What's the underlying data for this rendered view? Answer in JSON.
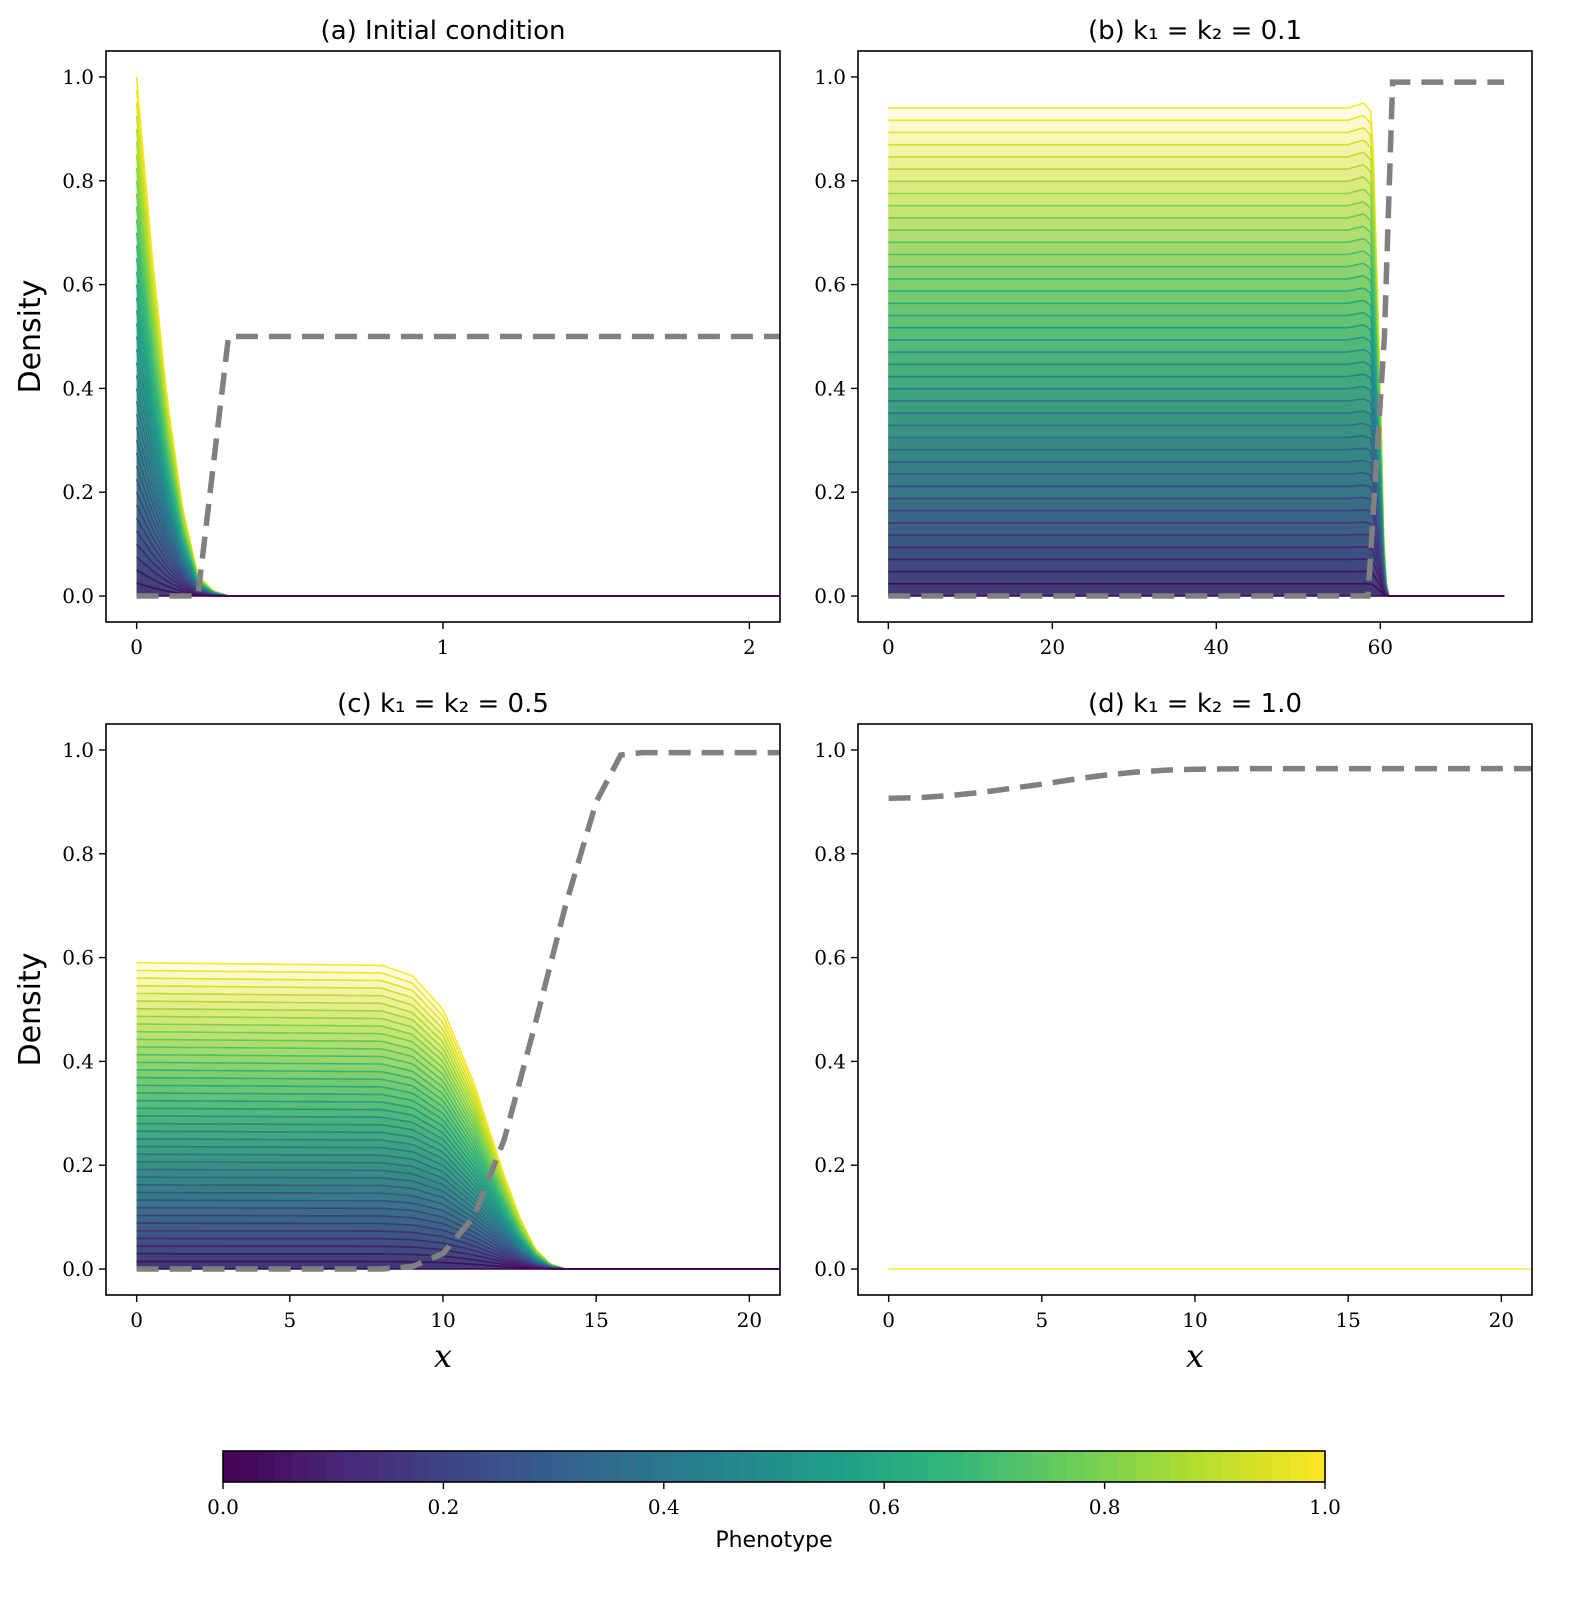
{
  "colormap_stops": [
    "#440154",
    "#482878",
    "#3e4989",
    "#31688e",
    "#26828e",
    "#1f9e89",
    "#35b779",
    "#6ece58",
    "#b5de2b",
    "#fde725"
  ],
  "threshold_color": "#808080",
  "colorbar": {
    "label": "Phenotype",
    "ticks": [
      0.0,
      0.2,
      0.4,
      0.6,
      0.8,
      1.0
    ],
    "tick_labels": [
      "0.0",
      "0.2",
      "0.4",
      "0.6",
      "0.8",
      "1.0"
    ],
    "range": [
      0,
      1
    ]
  },
  "chart_data": [
    {
      "type": "area",
      "id": "a",
      "title": "(a) Initial condition",
      "xlabel": "",
      "ylabel": "Density",
      "xlim": [
        -0.1,
        2.1
      ],
      "ylim": [
        -0.05,
        1.05
      ],
      "xticks": [
        0,
        1,
        2
      ],
      "xtick_labels": [
        "0",
        "1",
        "2"
      ],
      "yticks": [
        0.0,
        0.2,
        0.4,
        0.6,
        0.8,
        1.0
      ],
      "ytick_labels": [
        "0.0",
        "0.2",
        "0.4",
        "0.6",
        "0.8",
        "1.0"
      ],
      "grid": false,
      "family": {
        "phenotype_count": 41,
        "phenotype_range": [
          0,
          1
        ],
        "peak_density": [
          0,
          1.0
        ],
        "x": [
          0.0,
          0.05,
          0.1,
          0.15,
          0.2,
          0.25,
          0.3
        ],
        "density_at_peak": [
          1.0,
          0.66,
          0.38,
          0.17,
          0.04,
          0.01,
          0.0
        ],
        "x_end": 2.1
      },
      "threshold": {
        "x": [
          0.0,
          0.2,
          0.3,
          2.1
        ],
        "y": [
          0.0,
          0.0,
          0.5,
          0.5
        ]
      }
    },
    {
      "type": "area",
      "id": "b",
      "title": "(b) k₁ = k₂ = 0.1",
      "xlabel": "",
      "ylabel": "",
      "xlim": [
        -3.7,
        78.5
      ],
      "ylim": [
        -0.05,
        1.05
      ],
      "xticks": [
        0,
        20,
        40,
        60
      ],
      "xtick_labels": [
        "0",
        "20",
        "40",
        "60"
      ],
      "yticks": [
        0.0,
        0.2,
        0.4,
        0.6,
        0.8,
        1.0
      ],
      "ytick_labels": [
        "0.0",
        "0.2",
        "0.4",
        "0.6",
        "0.8",
        "1.0"
      ],
      "grid": false,
      "family": {
        "phenotype_count": 41,
        "phenotype_range": [
          0,
          1
        ],
        "plateau_density": [
          0,
          0.94
        ],
        "x": [
          0,
          50,
          54,
          56,
          57,
          58,
          59,
          60,
          60.5,
          61
        ],
        "density_at_peak": [
          0.94,
          0.94,
          0.94,
          0.94,
          0.945,
          0.95,
          0.93,
          0.4,
          0.05,
          0.0
        ],
        "x_end": 75.1
      },
      "threshold": {
        "x": [
          0.0,
          58.5,
          60.5,
          61.5,
          75.1
        ],
        "y": [
          0.0,
          0.0,
          0.5,
          0.99,
          0.99
        ]
      }
    },
    {
      "type": "area",
      "id": "c",
      "title": "(c) k₁ = k₂ = 0.5",
      "xlabel": "x",
      "ylabel": "Density",
      "xlim": [
        -1.0,
        21.0
      ],
      "ylim": [
        -0.05,
        1.05
      ],
      "xticks": [
        0,
        5,
        10,
        15,
        20
      ],
      "xtick_labels": [
        "0",
        "5",
        "10",
        "15",
        "20"
      ],
      "yticks": [
        0.0,
        0.2,
        0.4,
        0.6,
        0.8,
        1.0
      ],
      "ytick_labels": [
        "0.0",
        "0.2",
        "0.4",
        "0.6",
        "0.8",
        "1.0"
      ],
      "grid": false,
      "family": {
        "phenotype_count": 41,
        "phenotype_range": [
          0,
          1
        ],
        "plateau_density": [
          0,
          0.59
        ],
        "x": [
          0,
          8,
          9,
          10,
          11,
          11.5,
          12,
          12.5,
          13,
          13.5,
          14
        ],
        "density_at_peak": [
          0.59,
          0.585,
          0.565,
          0.5,
          0.36,
          0.27,
          0.18,
          0.1,
          0.04,
          0.01,
          0.0
        ],
        "x_end": 21.0
      },
      "threshold": {
        "x": [
          0,
          8,
          9,
          10,
          11,
          12,
          13,
          14,
          15,
          15.8,
          16.5,
          21
        ],
        "y": [
          0,
          0,
          0.005,
          0.03,
          0.1,
          0.25,
          0.47,
          0.7,
          0.9,
          0.99,
          0.995,
          0.995
        ]
      }
    },
    {
      "type": "area",
      "id": "d",
      "title": "(d) k₁ = k₂ = 1.0",
      "xlabel": "x",
      "ylabel": "",
      "xlim": [
        -1.0,
        21.0
      ],
      "ylim": [
        -0.05,
        1.05
      ],
      "xticks": [
        0,
        5,
        10,
        15,
        20
      ],
      "xtick_labels": [
        "0",
        "5",
        "10",
        "15",
        "20"
      ],
      "yticks": [
        0.0,
        0.2,
        0.4,
        0.6,
        0.8,
        1.0
      ],
      "ytick_labels": [
        "0.0",
        "0.2",
        "0.4",
        "0.6",
        "0.8",
        "1.0"
      ],
      "grid": false,
      "family": {
        "phenotype_count": 1,
        "phenotype_range": [
          1,
          1
        ],
        "plateau_density": [
          0,
          0
        ],
        "x": [
          0,
          21
        ],
        "density_at_peak": [
          0,
          0
        ],
        "x_end": 21.0
      },
      "threshold": {
        "x": [
          0,
          1,
          2,
          3,
          4,
          5,
          6,
          7,
          8,
          9,
          10,
          12,
          15,
          21
        ],
        "y": [
          0.907,
          0.908,
          0.912,
          0.918,
          0.926,
          0.934,
          0.943,
          0.951,
          0.957,
          0.961,
          0.963,
          0.964,
          0.964,
          0.964
        ]
      }
    }
  ]
}
